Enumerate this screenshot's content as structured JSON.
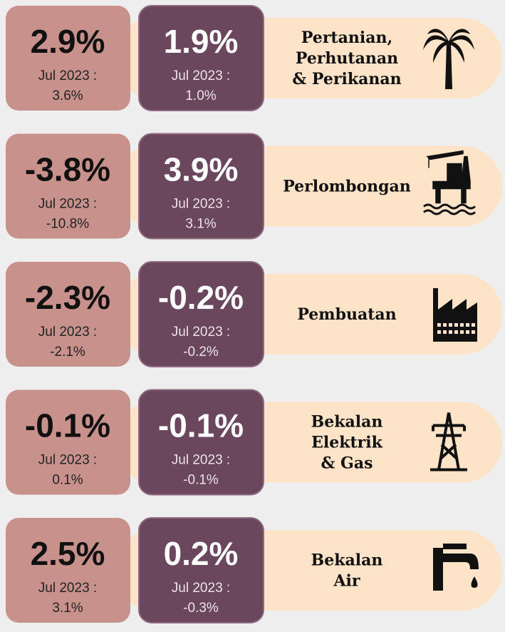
{
  "rows": [
    {
      "left": {
        "value": "2.9%",
        "label": "Jul 2023 :",
        "previous": "3.6%"
      },
      "right": {
        "value": "1.9%",
        "label": "Jul 2023 :",
        "previous": "1.0%"
      },
      "sector": [
        "Pertanian,",
        "Perhutanan",
        "& Perikanan"
      ]
    },
    {
      "left": {
        "value": "-3.8%",
        "label": "Jul 2023 :",
        "previous": "-10.8%"
      },
      "right": {
        "value": "3.9%",
        "label": "Jul 2023 :",
        "previous": "3.1%"
      },
      "sector": [
        "Perlombongan"
      ]
    },
    {
      "left": {
        "value": "-2.3%",
        "label": "Jul 2023 :",
        "previous": "-2.1%"
      },
      "right": {
        "value": "-0.2%",
        "label": "Jul 2023 :",
        "previous": "-0.2%"
      },
      "sector": [
        "Pembuatan"
      ]
    },
    {
      "left": {
        "value": "-0.1%",
        "label": "Jul 2023 :",
        "previous": "0.1%"
      },
      "right": {
        "value": "-0.1%",
        "label": "Jul 2023 :",
        "previous": "-0.1%"
      },
      "sector": [
        "Bekalan",
        "Elektrik",
        "& Gas"
      ]
    },
    {
      "left": {
        "value": "2.5%",
        "label": "Jul 2023 :",
        "previous": "3.1%"
      },
      "right": {
        "value": "0.2%",
        "label": "Jul 2023 :",
        "previous": "-0.3%"
      },
      "sector": [
        "Bekalan",
        "Air"
      ]
    }
  ]
}
